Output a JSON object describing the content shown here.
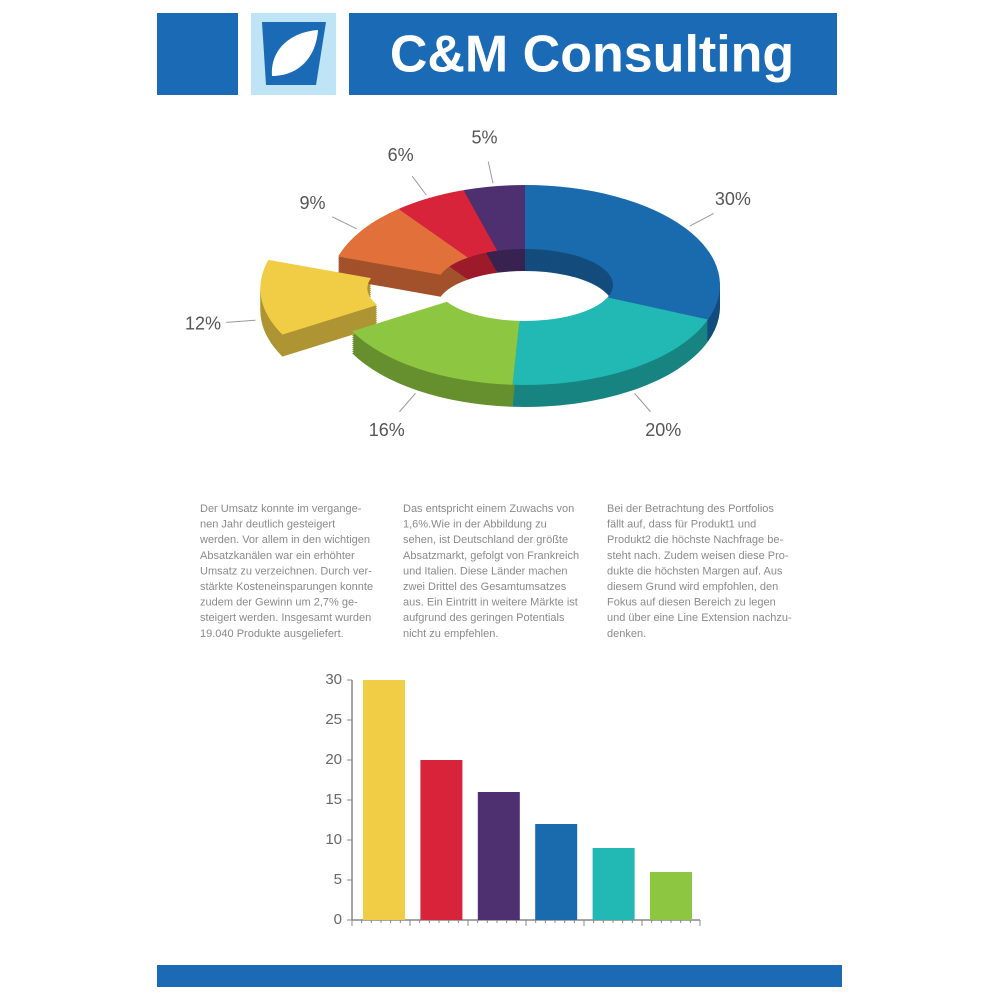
{
  "header": {
    "title": "C&M Consulting"
  },
  "chart_data": [
    {
      "type": "pie",
      "values": [
        30,
        20,
        16,
        12,
        9,
        6,
        5
      ],
      "value_labels": [
        "30%",
        "20%",
        "16%",
        "12%",
        "9%",
        "6%",
        "5%"
      ],
      "colors": [
        "#1a6aae",
        "#22b8b4",
        "#8dc640",
        "#f1cd45",
        "#e2703a",
        "#d8243b",
        "#4e2f6f"
      ],
      "exploded": [
        false,
        false,
        false,
        true,
        false,
        false,
        false
      ]
    },
    {
      "type": "bar",
      "categories": [
        null,
        null,
        null,
        null,
        null,
        null
      ],
      "values": [
        30,
        20,
        16,
        12,
        9,
        6
      ],
      "colors": [
        "#f1cd45",
        "#d8243b",
        "#4e2f6f",
        "#1a6aae",
        "#22b8b4",
        "#8dc640"
      ],
      "ylim": [
        0,
        30
      ],
      "yticks": [
        0,
        5,
        10,
        15,
        20,
        25,
        30
      ]
    }
  ],
  "columns": [
    [
      "Der Umsatz konnte im vergange-",
      "nen Jahr deutlich gesteigert",
      "werden. Vor allem in den wichtigen",
      "Absatzkanälen war ein erhöhter",
      "Umsatz zu verzeichnen. Durch ver-",
      "stärkte Kosteneinsparungen konnte",
      "zudem der Gewinn um 2,7% ge-",
      "steigert werden. Insgesamt wurden",
      "19.040 Produkte ausgeliefert."
    ],
    [
      "Das entspricht einem Zuwachs von",
      "1,6%.Wie in der Abbildung zu",
      "sehen, ist Deutschland der größte",
      "Absatzmarkt, gefolgt von Frankreich",
      "und Italien. Diese Länder machen",
      "zwei Drittel des Gesamtumsatzes",
      "aus. Ein Eintritt in weitere Märkte ist",
      "aufgrund des geringen Potentials",
      "nicht zu empfehlen."
    ],
    [
      "Bei der Betrachtung des Portfolios",
      "fällt auf, dass für Produkt1 und",
      "Produkt2 die höchste Nachfrage be-",
      "steht nach. Zudem weisen diese Pro-",
      "dukte die höchsten Margen auf. Aus",
      "diesem Grund wird empfohlen, den",
      "Fokus auf diesen Bereich zu legen",
      "und über eine Line Extension nachzu-",
      "denken."
    ]
  ]
}
